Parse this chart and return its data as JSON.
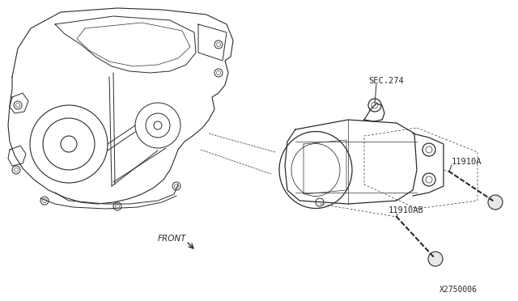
{
  "background_color": "#ffffff",
  "line_color": "#2a2a2a",
  "text_color": "#2a2a2a",
  "fig_width": 6.4,
  "fig_height": 3.72,
  "dpi": 100,
  "labels": {
    "sec274": "SEC.274",
    "11910A": "11910A",
    "11910AB": "11910AB",
    "part_num": "X2750006",
    "front": "FRONT"
  }
}
